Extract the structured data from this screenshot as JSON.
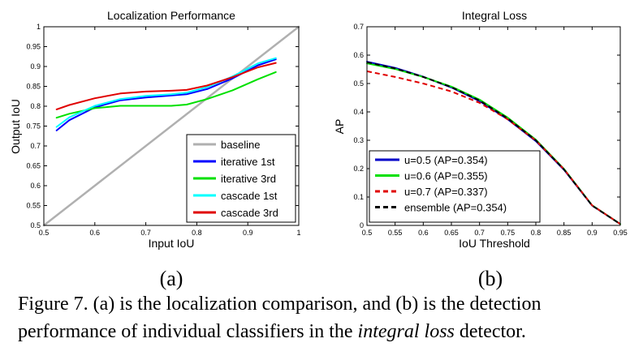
{
  "chart_data": [
    {
      "type": "line",
      "title": "Localization Performance",
      "xlabel": "Input IoU",
      "ylabel": "Output IoU",
      "xlim": [
        0.5,
        1.0
      ],
      "ylim": [
        0.5,
        1.0
      ],
      "xticks": [
        "0.5",
        "0.6",
        "0.7",
        "0.8",
        "0.9",
        "1"
      ],
      "yticks": [
        "0.5",
        "0.55",
        "0.6",
        "0.65",
        "0.7",
        "0.75",
        "0.8",
        "0.85",
        "0.9",
        "0.95",
        "1"
      ],
      "grid": false,
      "legend_position": "bottom-right",
      "series": [
        {
          "name": "baseline",
          "color": "#b0b0b0",
          "dash": "solid",
          "x": [
            0.5,
            1.0
          ],
          "y": [
            0.5,
            1.0
          ]
        },
        {
          "name": "iterative 1st",
          "color": "#0000ff",
          "dash": "solid",
          "x": [
            0.525,
            0.55,
            0.6,
            0.65,
            0.7,
            0.75,
            0.78,
            0.82,
            0.87,
            0.92,
            0.955
          ],
          "y": [
            0.739,
            0.765,
            0.797,
            0.815,
            0.822,
            0.827,
            0.83,
            0.843,
            0.87,
            0.903,
            0.918
          ]
        },
        {
          "name": "iterative 3rd",
          "color": "#00e000",
          "dash": "solid",
          "x": [
            0.525,
            0.55,
            0.6,
            0.65,
            0.7,
            0.75,
            0.78,
            0.82,
            0.87,
            0.92,
            0.955
          ],
          "y": [
            0.771,
            0.781,
            0.795,
            0.801,
            0.801,
            0.801,
            0.804,
            0.818,
            0.84,
            0.868,
            0.886
          ]
        },
        {
          "name": "cascade 1st",
          "color": "#00ffff",
          "dash": "solid",
          "x": [
            0.525,
            0.55,
            0.6,
            0.65,
            0.7,
            0.75,
            0.78,
            0.82,
            0.87,
            0.92,
            0.955
          ],
          "y": [
            0.748,
            0.772,
            0.801,
            0.818,
            0.826,
            0.83,
            0.834,
            0.848,
            0.875,
            0.908,
            0.921
          ]
        },
        {
          "name": "cascade 3rd",
          "color": "#e00000",
          "dash": "solid",
          "x": [
            0.525,
            0.55,
            0.6,
            0.65,
            0.7,
            0.75,
            0.78,
            0.82,
            0.87,
            0.92,
            0.955
          ],
          "y": [
            0.792,
            0.803,
            0.82,
            0.832,
            0.837,
            0.839,
            0.841,
            0.852,
            0.873,
            0.898,
            0.909
          ]
        }
      ]
    },
    {
      "type": "line",
      "title": "Integral Loss",
      "xlabel": "IoU Threshold",
      "ylabel": "AP",
      "xlim": [
        0.5,
        0.95
      ],
      "ylim": [
        0,
        0.7
      ],
      "xticks": [
        "0.5",
        "0.55",
        "0.6",
        "0.65",
        "0.7",
        "0.75",
        "0.8",
        "0.85",
        "0.9",
        "0.95"
      ],
      "yticks": [
        "0",
        "0.1",
        "0.2",
        "0.3",
        "0.4",
        "0.5",
        "0.6",
        "0.7"
      ],
      "grid": false,
      "legend_position": "bottom-left",
      "series": [
        {
          "name": "u=0.5 (AP=0.354)",
          "color": "#0000c8",
          "dash": "solid",
          "x": [
            0.5,
            0.55,
            0.6,
            0.65,
            0.7,
            0.75,
            0.8,
            0.85,
            0.9,
            0.95
          ],
          "y": [
            0.577,
            0.555,
            0.524,
            0.486,
            0.438,
            0.374,
            0.297,
            0.196,
            0.07,
            0.005
          ]
        },
        {
          "name": "u=0.6 (AP=0.355)",
          "color": "#00e000",
          "dash": "solid",
          "x": [
            0.5,
            0.55,
            0.6,
            0.65,
            0.7,
            0.75,
            0.8,
            0.85,
            0.9,
            0.95
          ],
          "y": [
            0.571,
            0.551,
            0.523,
            0.489,
            0.443,
            0.38,
            0.302,
            0.199,
            0.071,
            0.005
          ]
        },
        {
          "name": "u=0.7 (AP=0.337)",
          "color": "#e00000",
          "dash": "dashed",
          "x": [
            0.5,
            0.55,
            0.6,
            0.65,
            0.7,
            0.75,
            0.8,
            0.85,
            0.9,
            0.95
          ],
          "y": [
            0.543,
            0.523,
            0.5,
            0.472,
            0.432,
            0.374,
            0.299,
            0.198,
            0.071,
            0.005
          ]
        },
        {
          "name": "ensemble (AP=0.354)",
          "color": "#000000",
          "dash": "dashed",
          "x": [
            0.5,
            0.55,
            0.6,
            0.65,
            0.7,
            0.75,
            0.8,
            0.85,
            0.9,
            0.95
          ],
          "y": [
            0.575,
            0.553,
            0.523,
            0.487,
            0.44,
            0.377,
            0.3,
            0.197,
            0.07,
            0.005
          ]
        }
      ]
    }
  ],
  "panel_labels": [
    "(a)",
    "(b)"
  ],
  "caption": {
    "line1": "Figure 7. (a) is the localization comparison, and (b) is the detection",
    "line2_before": "performance of individual classifiers in the ",
    "line2_italic": "integral loss",
    "line2_after": " detector."
  }
}
